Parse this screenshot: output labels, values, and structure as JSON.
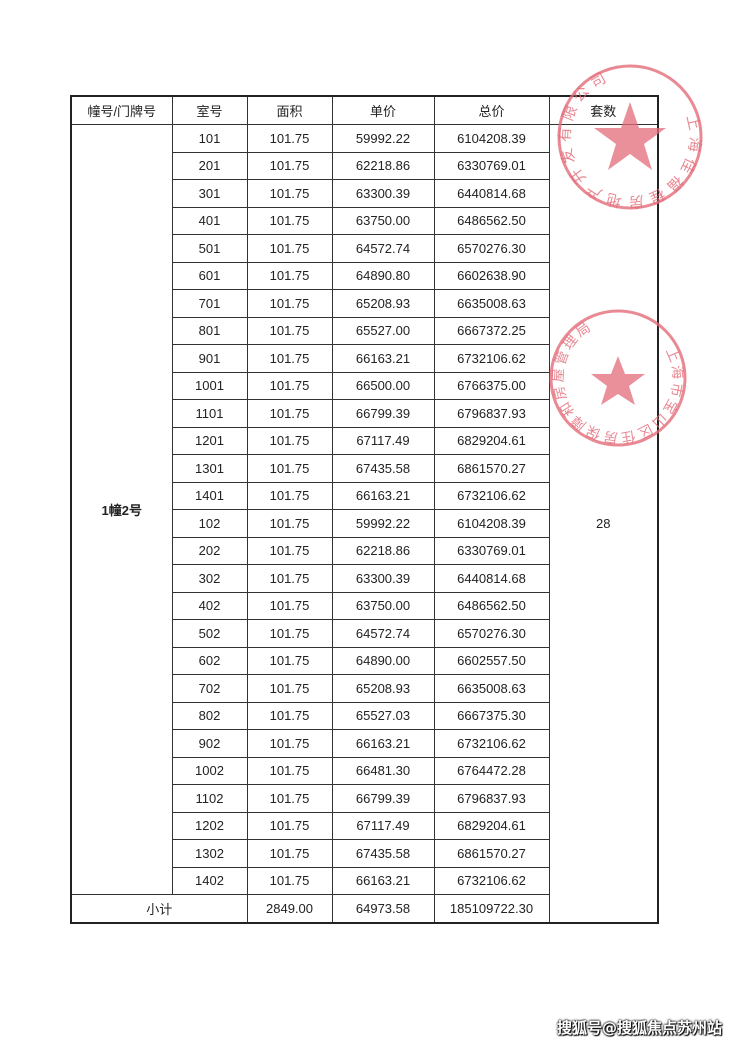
{
  "table": {
    "headers": [
      "幢号/门牌号",
      "室号",
      "面积",
      "单价",
      "总价",
      "套数"
    ],
    "building": "1幢2号",
    "unit_count": "28",
    "rows": [
      [
        "101",
        "101.75",
        "59992.22",
        "6104208.39"
      ],
      [
        "201",
        "101.75",
        "62218.86",
        "6330769.01"
      ],
      [
        "301",
        "101.75",
        "63300.39",
        "6440814.68"
      ],
      [
        "401",
        "101.75",
        "63750.00",
        "6486562.50"
      ],
      [
        "501",
        "101.75",
        "64572.74",
        "6570276.30"
      ],
      [
        "601",
        "101.75",
        "64890.80",
        "6602638.90"
      ],
      [
        "701",
        "101.75",
        "65208.93",
        "6635008.63"
      ],
      [
        "801",
        "101.75",
        "65527.00",
        "6667372.25"
      ],
      [
        "901",
        "101.75",
        "66163.21",
        "6732106.62"
      ],
      [
        "1001",
        "101.75",
        "66500.00",
        "6766375.00"
      ],
      [
        "1101",
        "101.75",
        "66799.39",
        "6796837.93"
      ],
      [
        "1201",
        "101.75",
        "67117.49",
        "6829204.61"
      ],
      [
        "1301",
        "101.75",
        "67435.58",
        "6861570.27"
      ],
      [
        "1401",
        "101.75",
        "66163.21",
        "6732106.62"
      ],
      [
        "102",
        "101.75",
        "59992.22",
        "6104208.39"
      ],
      [
        "202",
        "101.75",
        "62218.86",
        "6330769.01"
      ],
      [
        "302",
        "101.75",
        "63300.39",
        "6440814.68"
      ],
      [
        "402",
        "101.75",
        "63750.00",
        "6486562.50"
      ],
      [
        "502",
        "101.75",
        "64572.74",
        "6570276.30"
      ],
      [
        "602",
        "101.75",
        "64890.00",
        "6602557.50"
      ],
      [
        "702",
        "101.75",
        "65208.93",
        "6635008.63"
      ],
      [
        "802",
        "101.75",
        "65527.03",
        "6667375.30"
      ],
      [
        "902",
        "101.75",
        "66163.21",
        "6732106.62"
      ],
      [
        "1002",
        "101.75",
        "66481.30",
        "6764472.28"
      ],
      [
        "1102",
        "101.75",
        "66799.39",
        "6796837.93"
      ],
      [
        "1202",
        "101.75",
        "67117.49",
        "6829204.61"
      ],
      [
        "1302",
        "101.75",
        "67435.58",
        "6861570.27"
      ],
      [
        "1402",
        "101.75",
        "66163.21",
        "6732106.62"
      ]
    ],
    "subtotal": {
      "label": "小计",
      "area": "2849.00",
      "unit_price": "64973.58",
      "total": "185109722.30"
    }
  },
  "stamps": [
    {
      "text": "上海佳福程房地产开发有限公司",
      "color": "#e0505f"
    },
    {
      "text": "上海市宝山区住房保障和房屋管理局",
      "color": "#e0505f"
    }
  ],
  "watermark": "搜狐号@搜狐焦点苏州站"
}
